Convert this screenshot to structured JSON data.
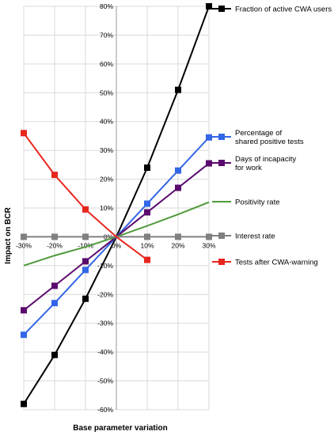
{
  "chart_data": {
    "type": "line",
    "title": "",
    "xlabel": "Base parameter variation",
    "ylabel": "Impact on BCR",
    "x": [
      -30,
      -20,
      -10,
      0,
      10,
      20,
      30
    ],
    "x_tick_labels": [
      "-30%",
      "-20%",
      "-10%",
      "0%",
      "10%",
      "20%",
      "30%"
    ],
    "ylim": [
      -60,
      80
    ],
    "y_tick_values": [
      80,
      70,
      60,
      50,
      40,
      30,
      20,
      10,
      0,
      -10,
      -20,
      -30,
      -40,
      -50,
      -60
    ],
    "y_tick_labels": [
      "80%",
      "70%",
      "60%",
      "50%",
      "40%",
      "30%",
      "20%",
      "10%",
      "0%",
      "-10%",
      "-20%",
      "-30%",
      "-40%",
      "-50%",
      "-60%"
    ],
    "grid": true,
    "legend_placement": "right",
    "series": [
      {
        "name": "Fraction of active CWA users",
        "color": "#000000",
        "marker": "square",
        "x": [
          -30,
          -20,
          -10,
          0,
          10,
          20,
          30
        ],
        "values": [
          -58,
          -41,
          -21.5,
          0,
          24,
          51,
          80
        ]
      },
      {
        "name": "Percentage of shared positive tests",
        "name_lines": [
          "Percentage of",
          "shared positive tests"
        ],
        "color": "#3366e6",
        "marker": "square",
        "x": [
          -30,
          -20,
          -10,
          0,
          10,
          20,
          30
        ],
        "values": [
          -34,
          -23,
          -11.5,
          0,
          11.5,
          23,
          34.5
        ]
      },
      {
        "name": "Days of incapacity for work",
        "name_lines": [
          "Days of incapacity",
          "for work"
        ],
        "color": "#5a0a6e",
        "marker": "square",
        "x": [
          -30,
          -20,
          -10,
          0,
          10,
          20,
          30
        ],
        "values": [
          -25.5,
          -17,
          -8.5,
          0,
          8.5,
          17,
          25.5
        ]
      },
      {
        "name": "Positivity rate",
        "color": "#4f9a3a",
        "marker": "none",
        "x": [
          -30,
          -20,
          -10,
          0,
          10,
          20,
          30
        ],
        "values": [
          -10,
          -6.5,
          -3.5,
          0,
          3.8,
          7.8,
          12
        ]
      },
      {
        "name": "Interest rate",
        "color": "#808080",
        "marker": "square",
        "x": [
          -30,
          -20,
          -10,
          0,
          10,
          20,
          30
        ],
        "values": [
          0,
          0,
          0,
          0,
          0,
          0,
          0
        ]
      },
      {
        "name": "Tests after CWA-warning",
        "color": "#e8261e",
        "marker": "square",
        "x": [
          -30,
          -20,
          -10,
          0,
          10
        ],
        "values": [
          36,
          21.5,
          9.5,
          0,
          -8
        ]
      }
    ]
  }
}
